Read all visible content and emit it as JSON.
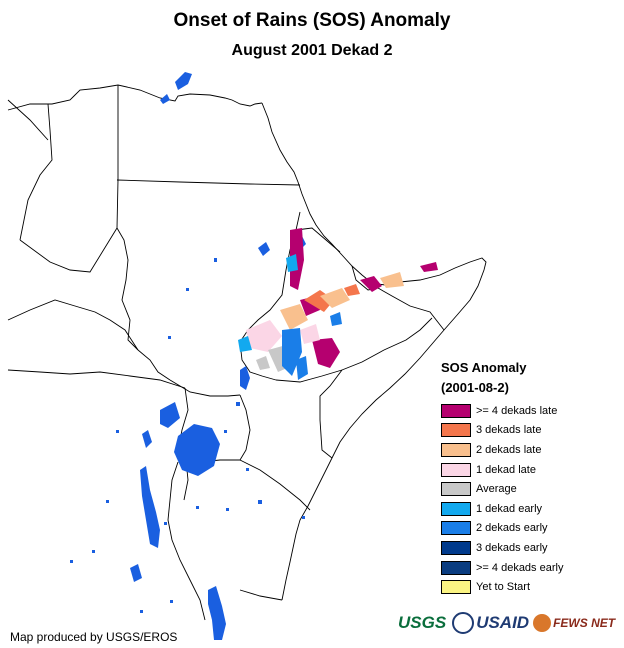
{
  "title": "Onset of Rains (SOS) Anomaly",
  "subtitle": "August 2001 Dekad 2",
  "legend": {
    "title": "SOS Anomaly",
    "period": "(2001-08-2)",
    "items": [
      {
        "label": ">= 4 dekads late",
        "color": "#b5006f"
      },
      {
        "label": "3 dekads late",
        "color": "#f4764c"
      },
      {
        "label": "2 dekads late",
        "color": "#f9c08e"
      },
      {
        "label": "1 dekad late",
        "color": "#fbd6e6"
      },
      {
        "label": "Average",
        "color": "#c8c8c8"
      },
      {
        "label": "1 dekad early",
        "color": "#12a9ef"
      },
      {
        "label": "2 dekads early",
        "color": "#1a7ee8"
      },
      {
        "label": "3 dekads early",
        "color": "#003a8c"
      },
      {
        "label": ">= 4 dekads early",
        "color": "#0a3c80"
      },
      {
        "label": "Yet to Start",
        "color": "#fbf483"
      }
    ]
  },
  "credit": "Map produced by USGS/EROS",
  "logos": {
    "usgs": "USGS",
    "usaid": "USAID",
    "fews": "FEWS NET"
  },
  "colors": {
    "lake": "#1a5fe0",
    "border": "#000000"
  }
}
